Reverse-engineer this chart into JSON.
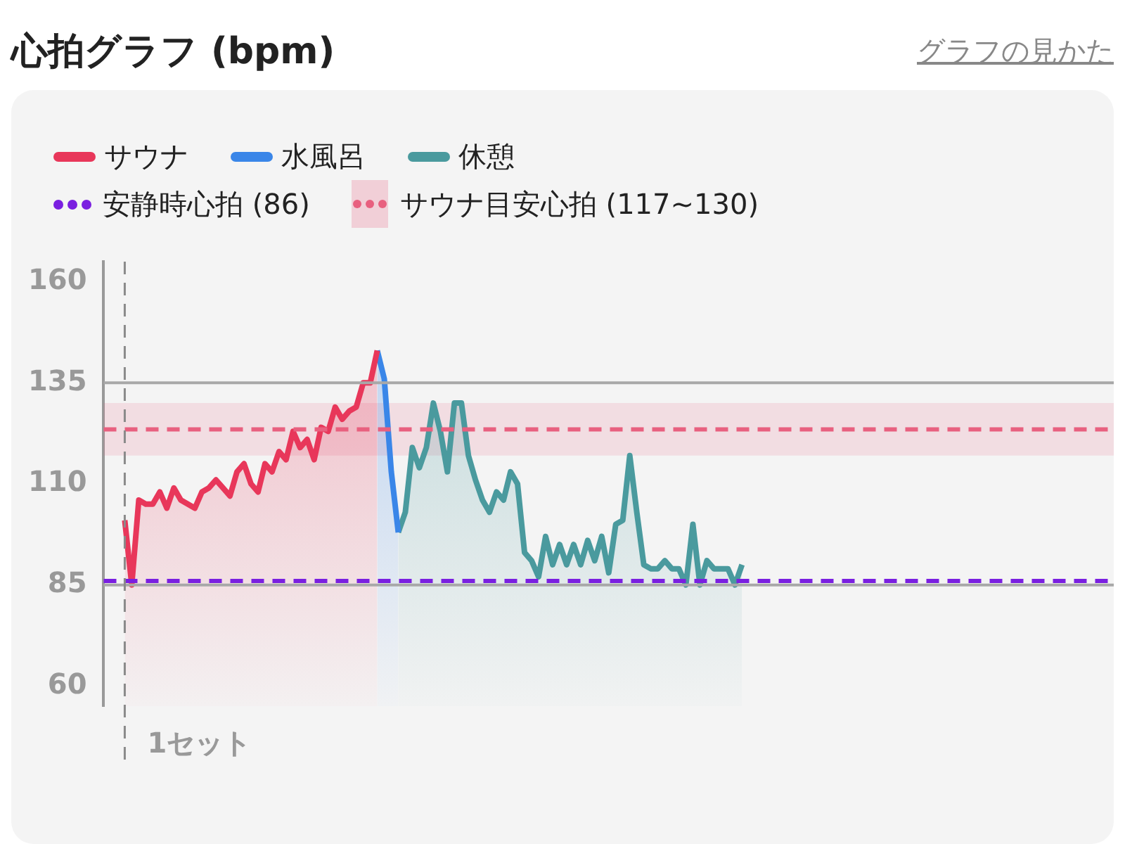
{
  "chart_data": {
    "type": "area",
    "title": "心拍グラフ (bpm)",
    "annotations": [
      "グラフの見かた"
    ],
    "categories": [
      null,
      null,
      null,
      null,
      null,
      null,
      null,
      null,
      null,
      null,
      null,
      null,
      null,
      null,
      null,
      null,
      null,
      null,
      null,
      null,
      null,
      null,
      null,
      null,
      null,
      null,
      null,
      null,
      null,
      null,
      null,
      null,
      null,
      null,
      null,
      null,
      null,
      null,
      null,
      null,
      null,
      null,
      null,
      null,
      null,
      null,
      null,
      null,
      null,
      null,
      null,
      null,
      null,
      null,
      null,
      null,
      null,
      null,
      null,
      null,
      null,
      null,
      null,
      null,
      null,
      null,
      null,
      null,
      null,
      null,
      null,
      null,
      null,
      null,
      null,
      null,
      null,
      null,
      null,
      null,
      null,
      null,
      null,
      null,
      null,
      null,
      null,
      null,
      null,
      null,
      null,
      null,
      null,
      null,
      null,
      null,
      null,
      null,
      null,
      null,
      null,
      null,
      null,
      null,
      null,
      null,
      null,
      null,
      null,
      null,
      null,
      null,
      null,
      null,
      null,
      null,
      null,
      null,
      null,
      null,
      null,
      null,
      null,
      null,
      null,
      null,
      null,
      null,
      null,
      null,
      null,
      null,
      null,
      null,
      null,
      null,
      null,
      null,
      null,
      null,
      null,
      null,
      null,
      null,
      null
    ],
    "series": [
      {
        "name": "サウナ",
        "color": "#e8375a",
        "values": [
          null,
          null,
          null,
          101,
          85,
          106,
          105,
          105,
          108,
          104,
          109,
          106,
          105,
          104,
          108,
          109,
          111,
          109,
          107,
          113,
          115,
          110,
          108,
          115,
          113,
          118,
          116,
          123,
          119,
          121,
          116,
          124,
          123,
          129,
          126,
          128,
          129,
          135,
          135,
          143,
          null,
          null,
          null,
          null,
          null,
          null,
          null,
          null,
          null,
          null,
          null,
          null,
          null,
          null,
          null,
          null,
          null,
          null,
          null,
          null,
          null,
          null,
          null,
          null,
          null,
          null,
          null,
          null,
          null,
          null,
          null,
          null,
          null,
          null,
          null,
          null,
          null,
          null,
          null,
          null,
          null,
          null,
          null,
          null,
          null,
          null,
          null,
          null,
          null,
          null,
          null,
          null,
          null,
          null,
          null,
          null,
          null,
          null,
          null,
          null,
          null,
          null,
          null,
          null,
          null,
          null,
          null,
          null,
          null,
          null,
          null,
          null,
          null,
          null,
          null,
          null,
          null,
          null,
          null,
          null,
          null,
          null,
          null,
          null,
          null,
          null,
          null,
          null,
          null,
          null,
          null,
          null,
          null,
          null,
          null,
          null,
          null,
          null,
          null,
          null,
          null,
          null,
          null,
          null,
          null
        ]
      },
      {
        "name": "水風呂",
        "color": "#3a86e8",
        "values": [
          null,
          null,
          null,
          null,
          null,
          null,
          null,
          null,
          null,
          null,
          null,
          null,
          null,
          null,
          null,
          null,
          null,
          null,
          null,
          null,
          null,
          null,
          null,
          null,
          null,
          null,
          null,
          null,
          null,
          null,
          null,
          null,
          null,
          null,
          null,
          null,
          null,
          null,
          null,
          143,
          136,
          113,
          98,
          null,
          null,
          null,
          null,
          null,
          null,
          null,
          null,
          null,
          null,
          null,
          null,
          null,
          null,
          null,
          null,
          null,
          null,
          null,
          null,
          null,
          null,
          null,
          null,
          null,
          null,
          null,
          null,
          null,
          null,
          null,
          null,
          null,
          null,
          null,
          null,
          null,
          null,
          null,
          null,
          null,
          null,
          null,
          null,
          null,
          null,
          null,
          null,
          null,
          null,
          null,
          null,
          null,
          null,
          null,
          null,
          null,
          null,
          null,
          null,
          null,
          null,
          null,
          null,
          null,
          null,
          null,
          null,
          null,
          null,
          null,
          null,
          null,
          null,
          null,
          null,
          null,
          null,
          null,
          null,
          null,
          null,
          null,
          null,
          null,
          null,
          null,
          null,
          null,
          null,
          null,
          null,
          null,
          null,
          null,
          null,
          null,
          null,
          null,
          null,
          null,
          null
        ]
      },
      {
        "name": "休憩",
        "color": "#4a9a9e",
        "values": [
          null,
          null,
          null,
          null,
          null,
          null,
          null,
          null,
          null,
          null,
          null,
          null,
          null,
          null,
          null,
          null,
          null,
          null,
          null,
          null,
          null,
          null,
          null,
          null,
          null,
          null,
          null,
          null,
          null,
          null,
          null,
          null,
          null,
          null,
          null,
          null,
          null,
          null,
          null,
          null,
          null,
          null,
          98,
          103,
          119,
          114,
          119,
          130,
          123,
          113,
          130,
          130,
          117,
          111,
          106,
          103,
          108,
          106,
          113,
          110,
          93,
          91,
          87,
          97,
          90,
          95,
          90,
          95,
          90,
          96,
          91,
          97,
          88,
          100,
          101,
          117,
          103,
          90,
          89,
          89,
          91,
          89,
          89,
          85,
          100,
          85,
          91,
          89,
          89,
          89,
          85,
          90,
          null,
          null,
          null,
          null,
          null,
          null,
          null,
          null,
          null,
          null,
          null,
          null,
          null,
          null,
          null,
          null,
          null,
          null,
          null,
          null,
          null,
          null,
          null,
          null,
          null,
          null,
          null,
          null,
          null,
          null,
          null,
          null,
          null,
          null,
          null,
          null,
          null,
          null,
          null,
          null,
          null,
          null,
          null,
          null,
          null,
          null,
          null,
          null,
          null,
          null,
          null,
          null,
          null
        ]
      }
    ],
    "ylim": [
      55,
      165
    ],
    "yticks": [
      60,
      85,
      110,
      135,
      160
    ],
    "tick_labels": "y",
    "grid": false,
    "marker": "none",
    "legend": "top left",
    "ref_lines": [
      {
        "axis": "y",
        "value": 135,
        "color": "#a8a8a8",
        "line_style": "solid"
      },
      {
        "axis": "y",
        "value": 85,
        "color": "#a8a8a8",
        "line_style": "solid"
      },
      {
        "axis": "y",
        "value": 86,
        "label": "安静時心拍 (86)",
        "color": "#7a1fe0",
        "line_style": "dashed"
      },
      {
        "axis": "y",
        "value": 123.5,
        "color": "#e8607f",
        "line_style": "dashed"
      },
      {
        "axis": "x",
        "label": "1セット",
        "color": "#8a8a8a",
        "line_style": "dashed"
      }
    ],
    "bands": [
      {
        "axis": "y",
        "from": 117,
        "to": 130,
        "label": "サウナ目安心拍 (117~130)",
        "color": "#e8607f"
      }
    ]
  }
}
